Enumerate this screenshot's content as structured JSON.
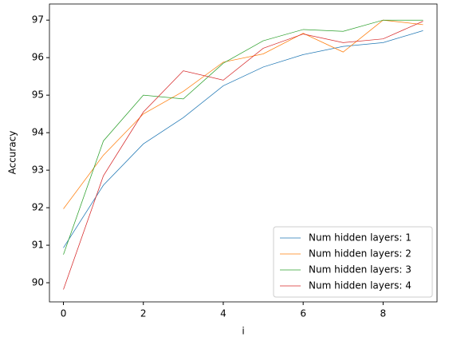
{
  "chart_data": {
    "type": "line",
    "x_label": "i",
    "y_label": "Accuracy",
    "x": [
      0,
      1,
      2,
      3,
      4,
      5,
      6,
      7,
      8,
      9
    ],
    "series": [
      {
        "name": "Num hidden layers: 1",
        "color": "#1f77b4",
        "values": [
          90.93,
          92.6,
          93.7,
          94.4,
          95.25,
          95.75,
          96.08,
          96.3,
          96.4,
          96.72
        ]
      },
      {
        "name": "Num hidden layers: 2",
        "color": "#ff7f0e",
        "values": [
          91.97,
          93.4,
          94.5,
          95.1,
          95.88,
          96.1,
          96.65,
          96.15,
          97.0,
          96.88
        ]
      },
      {
        "name": "Num hidden layers: 3",
        "color": "#2ca02c",
        "values": [
          90.75,
          93.78,
          95.0,
          94.9,
          95.85,
          96.45,
          96.75,
          96.7,
          97.0,
          97.0
        ]
      },
      {
        "name": "Num hidden layers: 4",
        "color": "#d62728",
        "values": [
          89.82,
          92.85,
          94.55,
          95.65,
          95.4,
          96.25,
          96.63,
          96.4,
          96.5,
          96.97
        ]
      }
    ],
    "xlim": [
      -0.35,
      9.35
    ],
    "xticks": [
      0,
      2,
      4,
      6,
      8
    ],
    "ylim": [
      89.49,
      97.43
    ],
    "yticks": [
      90,
      91,
      92,
      93,
      94,
      95,
      96,
      97
    ],
    "legend": "lower right"
  }
}
